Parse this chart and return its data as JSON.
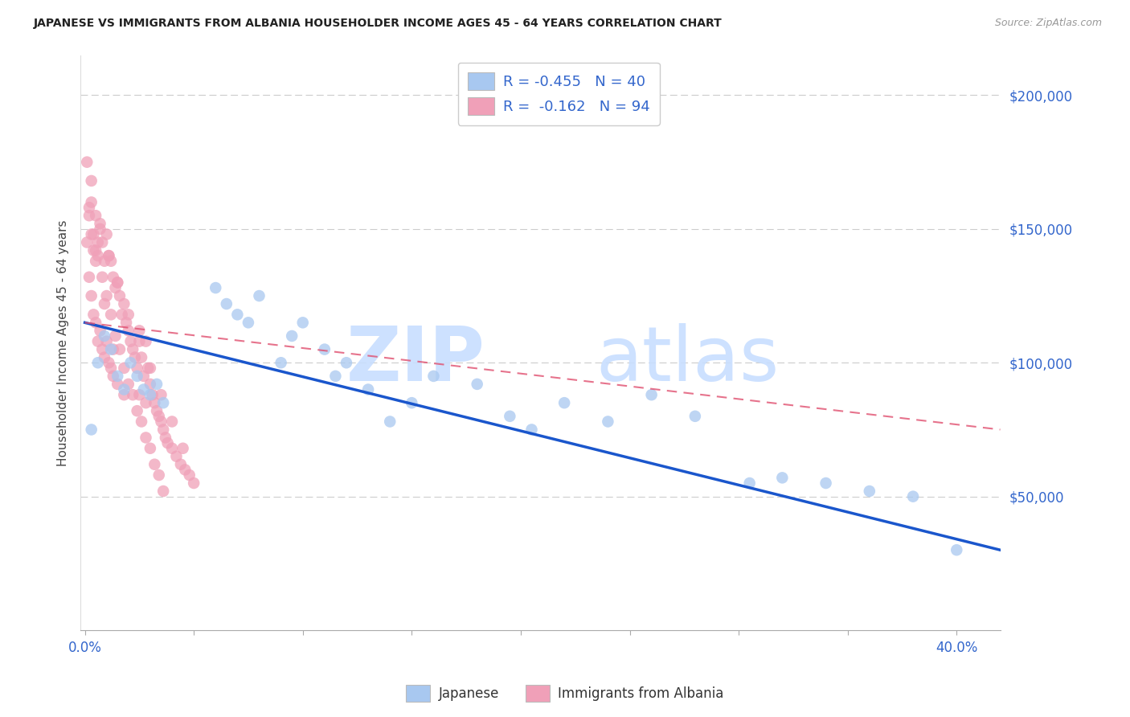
{
  "title": "JAPANESE VS IMMIGRANTS FROM ALBANIA HOUSEHOLDER INCOME AGES 45 - 64 YEARS CORRELATION CHART",
  "source": "Source: ZipAtlas.com",
  "ylabel": "Householder Income Ages 45 - 64 years",
  "legend_blue_r": "R = -0.455",
  "legend_blue_n": "N = 40",
  "legend_pink_r": "R =  -0.162",
  "legend_pink_n": "N = 94",
  "legend_label_blue": "Japanese",
  "legend_label_pink": "Immigrants from Albania",
  "blue_color": "#A8C8F0",
  "pink_color": "#F0A0B8",
  "blue_line_color": "#1A56CC",
  "pink_line_color": "#E05070",
  "axis_label_color": "#3366CC",
  "background": "#FFFFFF",
  "ylim": [
    0,
    215000
  ],
  "xlim": [
    -0.002,
    0.42
  ],
  "yticks": [
    50000,
    100000,
    150000,
    200000
  ],
  "ytick_labels": [
    "$50,000",
    "$100,000",
    "$150,000",
    "$200,000"
  ],
  "xticks": [
    0.0,
    0.05,
    0.1,
    0.15,
    0.2,
    0.25,
    0.3,
    0.35,
    0.4
  ],
  "japanese_x": [
    0.003,
    0.006,
    0.009,
    0.012,
    0.015,
    0.018,
    0.021,
    0.024,
    0.027,
    0.03,
    0.033,
    0.036,
    0.06,
    0.065,
    0.07,
    0.075,
    0.08,
    0.09,
    0.095,
    0.1,
    0.11,
    0.115,
    0.12,
    0.13,
    0.14,
    0.15,
    0.16,
    0.18,
    0.195,
    0.205,
    0.22,
    0.24,
    0.26,
    0.28,
    0.305,
    0.32,
    0.34,
    0.36,
    0.38,
    0.4
  ],
  "japanese_y": [
    75000,
    100000,
    110000,
    105000,
    95000,
    90000,
    100000,
    95000,
    90000,
    88000,
    92000,
    85000,
    128000,
    122000,
    118000,
    115000,
    125000,
    100000,
    110000,
    115000,
    105000,
    95000,
    100000,
    90000,
    78000,
    85000,
    95000,
    92000,
    80000,
    75000,
    85000,
    78000,
    88000,
    80000,
    55000,
    57000,
    55000,
    52000,
    50000,
    30000
  ],
  "albanian_x": [
    0.001,
    0.001,
    0.002,
    0.002,
    0.003,
    0.003,
    0.004,
    0.004,
    0.005,
    0.005,
    0.005,
    0.006,
    0.006,
    0.007,
    0.007,
    0.008,
    0.008,
    0.009,
    0.009,
    0.01,
    0.01,
    0.011,
    0.011,
    0.012,
    0.012,
    0.013,
    0.013,
    0.014,
    0.015,
    0.015,
    0.016,
    0.017,
    0.018,
    0.018,
    0.019,
    0.02,
    0.021,
    0.022,
    0.023,
    0.024,
    0.025,
    0.025,
    0.026,
    0.027,
    0.028,
    0.028,
    0.029,
    0.03,
    0.031,
    0.032,
    0.033,
    0.034,
    0.035,
    0.036,
    0.037,
    0.038,
    0.04,
    0.042,
    0.044,
    0.046,
    0.048,
    0.05,
    0.002,
    0.004,
    0.006,
    0.008,
    0.01,
    0.012,
    0.014,
    0.016,
    0.018,
    0.02,
    0.022,
    0.024,
    0.026,
    0.028,
    0.03,
    0.032,
    0.034,
    0.036,
    0.003,
    0.007,
    0.011,
    0.015,
    0.02,
    0.025,
    0.03,
    0.035,
    0.04,
    0.045,
    0.003,
    0.005,
    0.009,
    0.013
  ],
  "albanian_y": [
    175000,
    145000,
    155000,
    132000,
    148000,
    125000,
    142000,
    118000,
    155000,
    138000,
    115000,
    145000,
    108000,
    152000,
    112000,
    145000,
    105000,
    138000,
    102000,
    148000,
    108000,
    140000,
    100000,
    138000,
    98000,
    132000,
    95000,
    128000,
    130000,
    92000,
    125000,
    118000,
    122000,
    88000,
    115000,
    112000,
    108000,
    105000,
    102000,
    98000,
    112000,
    88000,
    102000,
    95000,
    108000,
    85000,
    98000,
    92000,
    88000,
    85000,
    82000,
    80000,
    78000,
    75000,
    72000,
    70000,
    68000,
    65000,
    62000,
    60000,
    58000,
    55000,
    158000,
    148000,
    140000,
    132000,
    125000,
    118000,
    110000,
    105000,
    98000,
    92000,
    88000,
    82000,
    78000,
    72000,
    68000,
    62000,
    58000,
    52000,
    168000,
    150000,
    140000,
    130000,
    118000,
    108000,
    98000,
    88000,
    78000,
    68000,
    160000,
    142000,
    122000,
    105000
  ],
  "blue_line_x0": 0.0,
  "blue_line_y0": 115000,
  "blue_line_x1": 0.42,
  "blue_line_y1": 30000,
  "pink_line_x0": 0.0,
  "pink_line_y0": 115000,
  "pink_line_x1": 0.42,
  "pink_line_y1": 75000
}
